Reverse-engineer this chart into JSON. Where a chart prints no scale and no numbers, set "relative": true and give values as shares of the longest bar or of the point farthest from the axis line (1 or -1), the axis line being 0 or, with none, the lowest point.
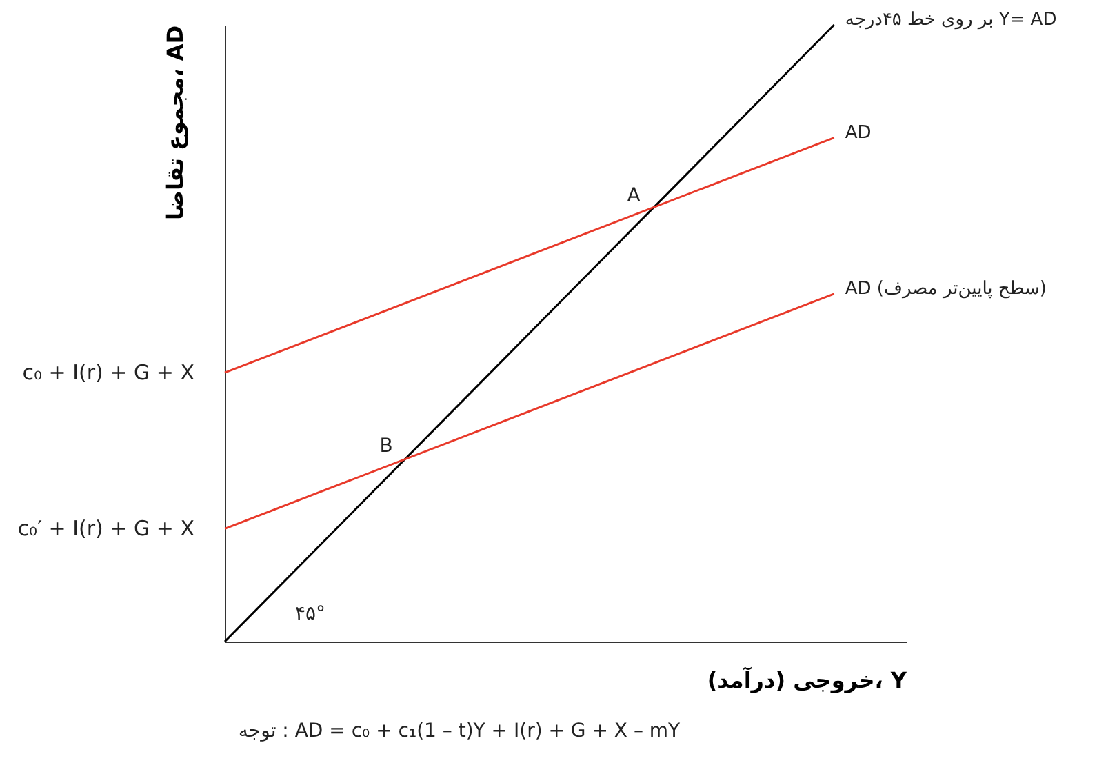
{
  "chart_data": {
    "type": "line",
    "relative": true,
    "xlabel": "خروجی (درآمد)، Y",
    "ylabel": "مجموع تقاضا، AD",
    "tick_labels": false,
    "grid": false,
    "line_style": "solid",
    "categories": [
      null,
      null
    ],
    "series": [
      {
        "name": "بر روی خط ۴۵درجه Y= AD",
        "color": "#000000",
        "values": [
          0,
          1
        ]
      },
      {
        "name": "AD",
        "color": "#e8392a",
        "values": [
          0.436,
          0.817
        ]
      },
      {
        "name": "AD (سطح پایین‌تر مصرف)",
        "color": "#e8392a",
        "values": [
          0.183,
          0.564
        ]
      }
    ],
    "annotations": [
      {
        "text": "A",
        "y": 0.7
      },
      {
        "text": "B",
        "y": 0.294
      },
      "c₀ + I(r) + G + X",
      "c₀′ + I(r) + G + X",
      "۴۵°",
      "توجه : AD = c₀ + c₁(1 – t)Y + I(r) + G + X – mY"
    ]
  }
}
